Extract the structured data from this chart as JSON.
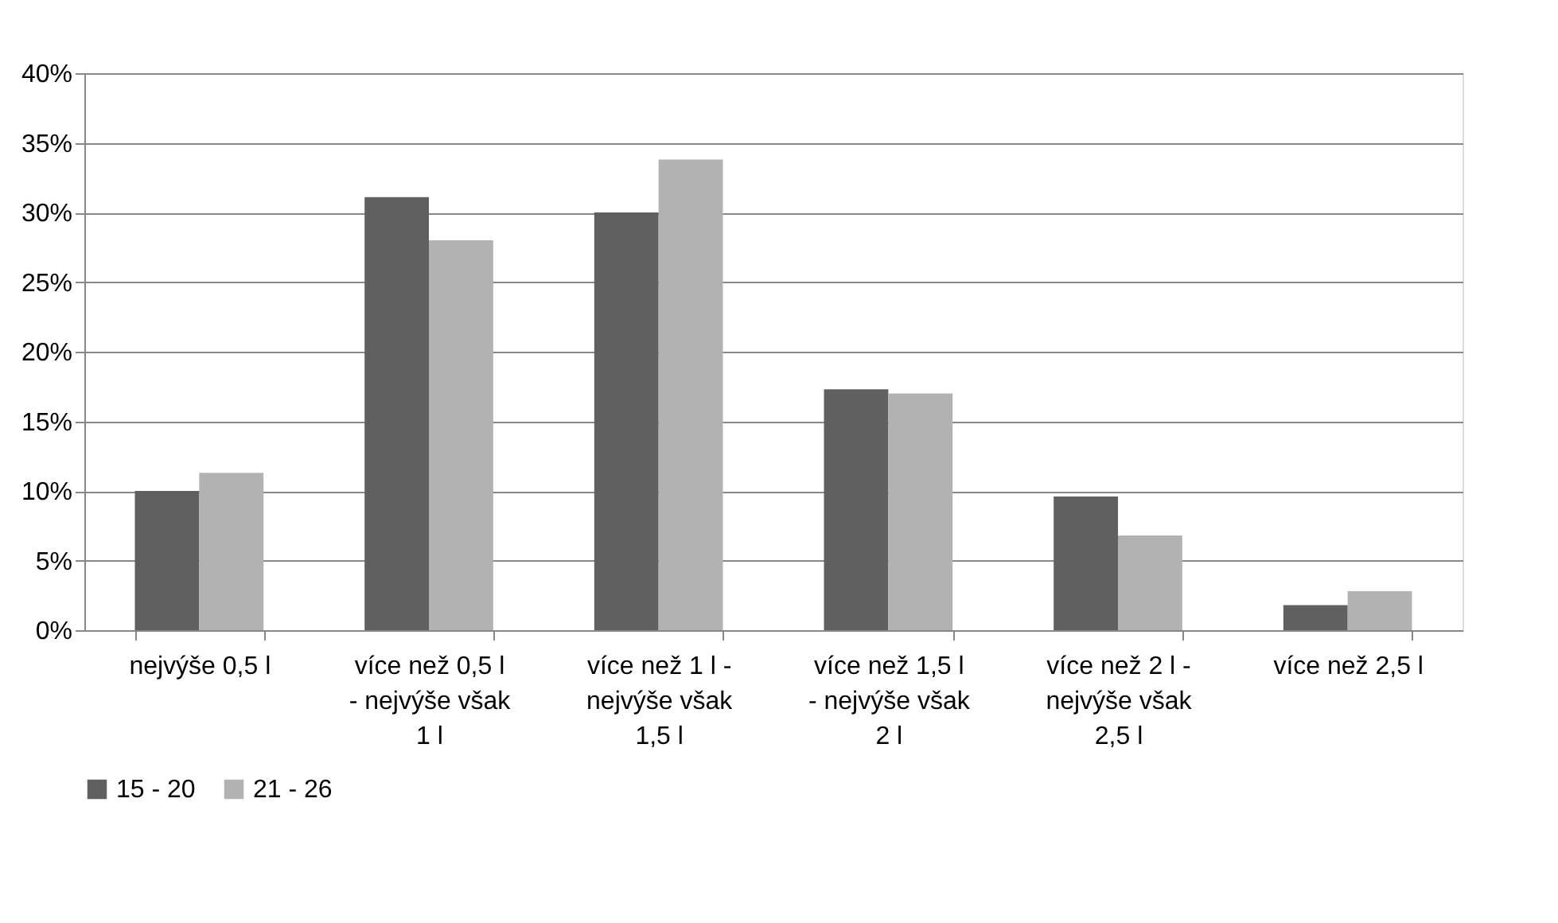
{
  "chart_data": {
    "type": "bar",
    "categories": [
      "nejvýše 0,5 l",
      "více než 0,5 l - nejvýše však 1 l",
      "více než 1 l - nejvýše však 1,5 l",
      "více než 1,5 l - nejvýše však  2 l",
      "více než  2 l - nejvýše však 2,5 l",
      "více než 2,5 l"
    ],
    "series": [
      {
        "name": "15 - 20",
        "color": "#606060",
        "values": [
          10.0,
          31.1,
          30.0,
          17.3,
          9.6,
          1.8
        ]
      },
      {
        "name": "21 - 26",
        "color": "#b2b2b2",
        "values": [
          11.3,
          28.0,
          33.8,
          17.0,
          6.8,
          2.8
        ]
      }
    ],
    "ylim": [
      0,
      40
    ],
    "yticks": [
      {
        "value": 0,
        "label": "0%"
      },
      {
        "value": 5,
        "label": "5%"
      },
      {
        "value": 10,
        "label": "10%"
      },
      {
        "value": 15,
        "label": "15%"
      },
      {
        "value": 20,
        "label": "20%"
      },
      {
        "value": 25,
        "label": "25%"
      },
      {
        "value": 30,
        "label": "30%"
      },
      {
        "value": 35,
        "label": "35%"
      },
      {
        "value": 40,
        "label": "40%"
      }
    ],
    "grid": "y",
    "legend": "bottom"
  }
}
